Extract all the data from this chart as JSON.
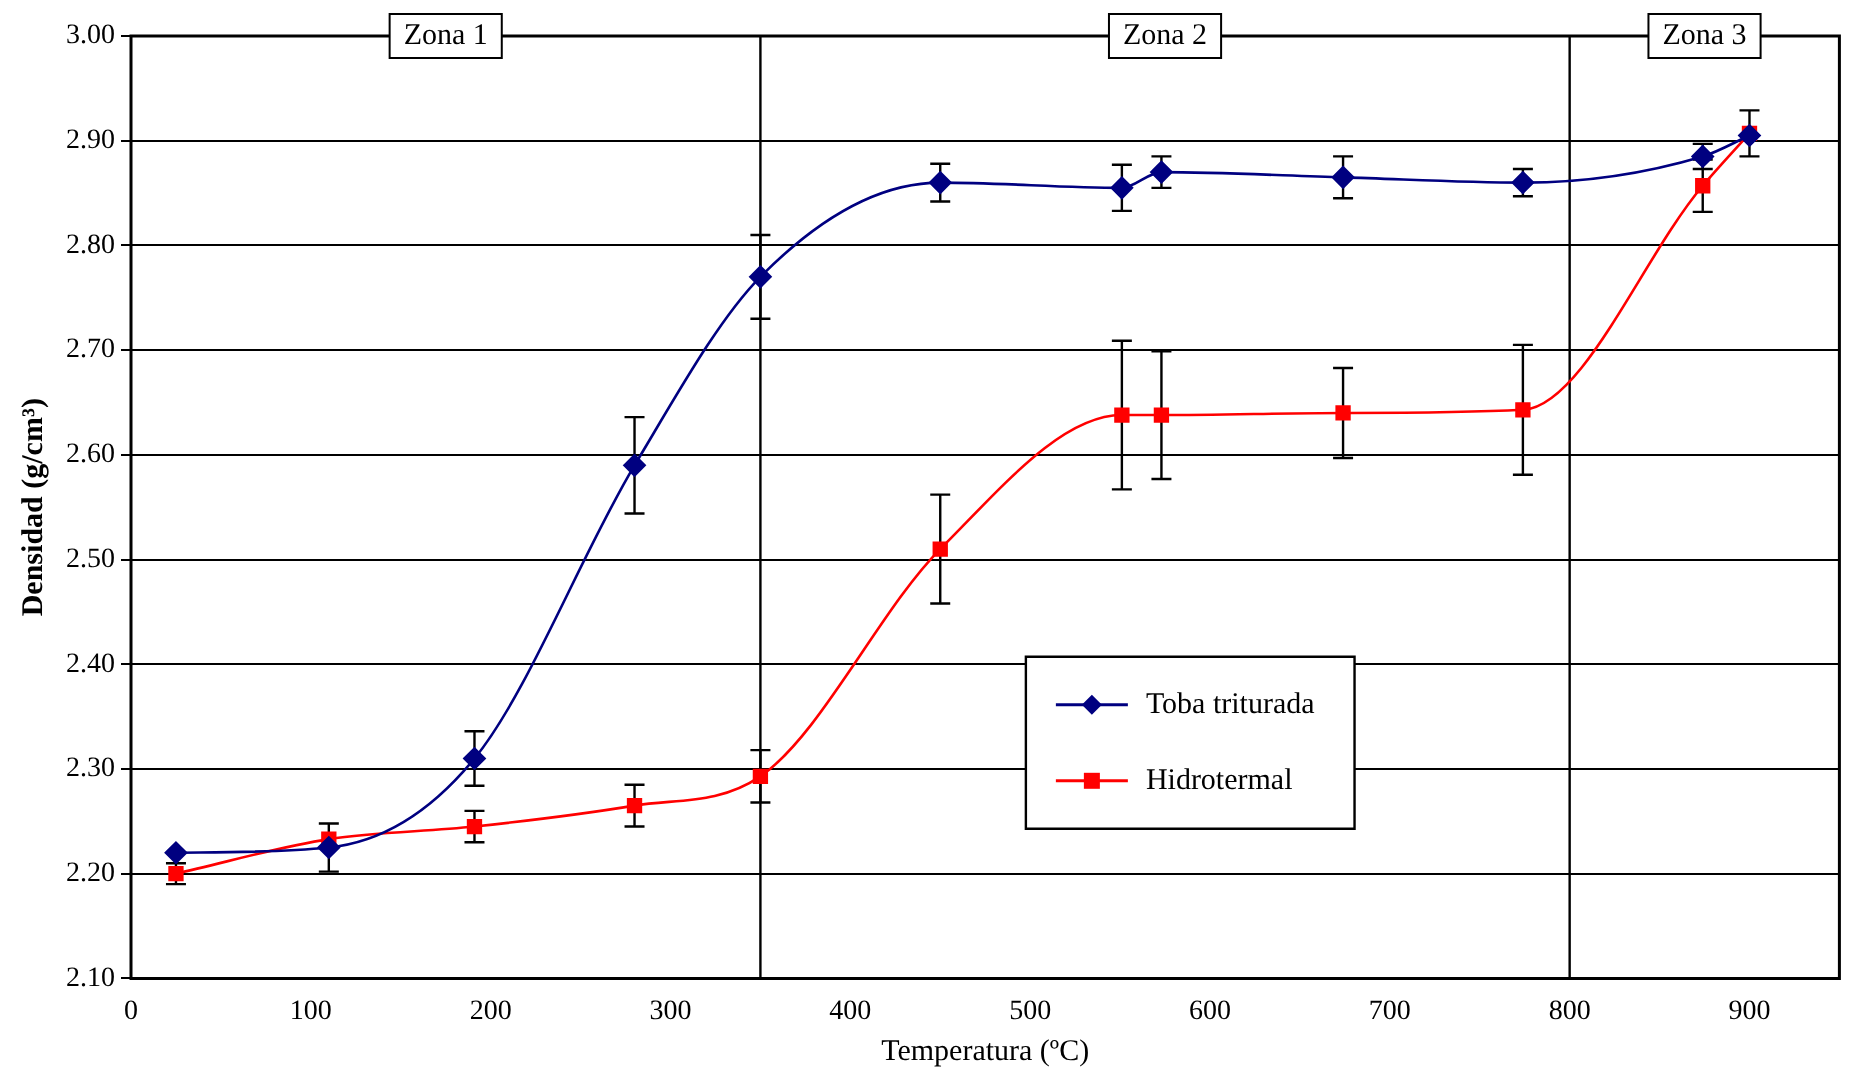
{
  "chart_data": {
    "type": "line",
    "xlabel": "Temperatura (ºC)",
    "ylabel": "Densidad (g/cm³)",
    "xlim": [
      0,
      950
    ],
    "xticks": [
      0,
      100,
      200,
      300,
      400,
      500,
      600,
      700,
      800,
      900
    ],
    "ylim": [
      2.1,
      3.0
    ],
    "yticks": [
      {
        "value": 2.1,
        "label": "2.10"
      },
      {
        "value": 2.2,
        "label": "2.20"
      },
      {
        "value": 2.3,
        "label": "2.30"
      },
      {
        "value": 2.4,
        "label": "2.40"
      },
      {
        "value": 2.5,
        "label": "2.50"
      },
      {
        "value": 2.6,
        "label": "2.60"
      },
      {
        "value": 2.7,
        "label": "2.70"
      },
      {
        "value": 2.8,
        "label": "2.80"
      },
      {
        "value": 2.9,
        "label": "2.90"
      },
      {
        "value": 3.0,
        "label": "3.00"
      }
    ],
    "grid": "y",
    "legend": "center",
    "line_style": "solid",
    "series": [
      {
        "name": "Toba triturada",
        "color": "#000080",
        "marker": "diamond",
        "x": [
          25,
          110,
          191,
          280,
          350,
          450,
          551,
          573,
          674,
          774,
          874,
          900
        ],
        "values": [
          2.22,
          2.225,
          2.31,
          2.59,
          2.77,
          2.86,
          2.855,
          2.87,
          2.865,
          2.86,
          2.885,
          2.905
        ],
        "errors": [
          null,
          0.023,
          0.026,
          0.046,
          0.04,
          0.018,
          0.022,
          0.015,
          0.02,
          0.013,
          0.012,
          null
        ]
      },
      {
        "name": "Hidrotermal",
        "color": "#ff0000",
        "marker": "square",
        "x": [
          25,
          110,
          191,
          280,
          350,
          450,
          551,
          573,
          674,
          774,
          874,
          900
        ],
        "values": [
          2.2,
          2.233,
          2.245,
          2.265,
          2.293,
          2.51,
          2.638,
          2.638,
          2.64,
          2.643,
          2.857,
          2.907
        ],
        "errors": [
          0.01,
          null,
          0.015,
          0.02,
          0.025,
          0.052,
          0.071,
          0.061,
          0.043,
          0.062,
          0.025,
          0.022
        ]
      }
    ],
    "ref_lines": [
      {
        "axis": "x",
        "value": 350,
        "color": "#000000"
      },
      {
        "axis": "x",
        "value": 800,
        "color": "#000000"
      }
    ],
    "annotations": [
      "Zona 1",
      "Zona 2",
      "Zona 3"
    ]
  }
}
